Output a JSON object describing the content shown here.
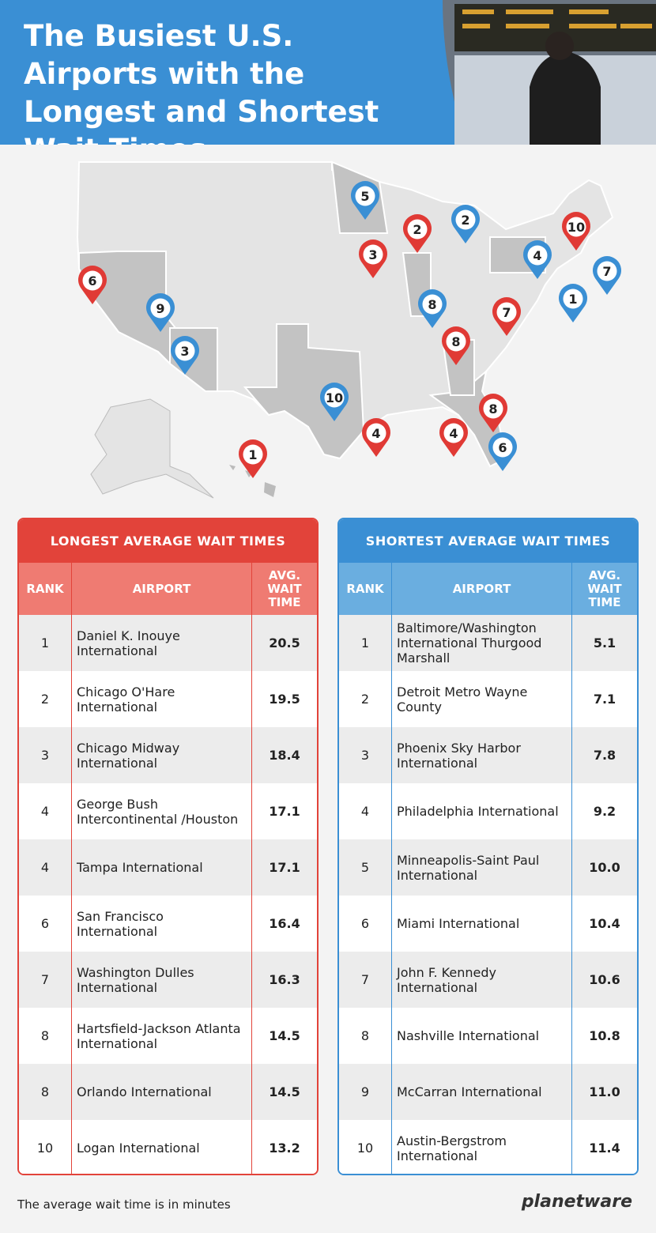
{
  "header": {
    "title": "The Busiest U.S. Airports with the Longest and Shortest Wait Times"
  },
  "map": {
    "pins": [
      {
        "label": 1,
        "color": "#e03a35"
      },
      {
        "label": 2,
        "color": "#e03a35"
      },
      {
        "label": 3,
        "color": "#e03a35"
      },
      {
        "label": 4,
        "color": "#e03a35"
      },
      {
        "label": 4,
        "color": "#e03a35"
      },
      {
        "label": 6,
        "color": "#e03a35"
      },
      {
        "label": 7,
        "color": "#e03a35"
      },
      {
        "label": 8,
        "color": "#e03a35"
      },
      {
        "label": 8,
        "color": "#e03a35"
      },
      {
        "label": 10,
        "color": "#e03a35"
      },
      {
        "label": 1,
        "color": "#3a8fd4"
      },
      {
        "label": 2,
        "color": "#3a8fd4"
      },
      {
        "label": 3,
        "color": "#3a8fd4"
      },
      {
        "label": 4,
        "color": "#3a8fd4"
      },
      {
        "label": 5,
        "color": "#3a8fd4"
      },
      {
        "label": 6,
        "color": "#3a8fd4"
      },
      {
        "label": 7,
        "color": "#3a8fd4"
      },
      {
        "label": 8,
        "color": "#3a8fd4"
      },
      {
        "label": 9,
        "color": "#3a8fd4"
      },
      {
        "label": 10,
        "color": "#3a8fd4"
      }
    ]
  },
  "tables": [
    {
      "title": "LONGEST AVERAGE WAIT TIMES",
      "headers": [
        "RANK",
        "AIRPORT",
        "AVG. WAIT TIME"
      ],
      "rows": [
        [
          "1",
          "Daniel K. Inouye International",
          "20.5"
        ],
        [
          "2",
          "Chicago O'Hare International",
          "19.5"
        ],
        [
          "3",
          "Chicago Midway International",
          "18.4"
        ],
        [
          "4",
          "George Bush Intercontinental /Houston",
          "17.1"
        ],
        [
          "4",
          "Tampa International",
          "17.1"
        ],
        [
          "6",
          "San Francisco International",
          "16.4"
        ],
        [
          "7",
          "Washington Dulles International",
          "16.3"
        ],
        [
          "8",
          "Hartsfield-Jackson Atlanta International",
          "14.5"
        ],
        [
          "8",
          "Orlando International",
          "14.5"
        ],
        [
          "10",
          "Logan International",
          "13.2"
        ]
      ]
    },
    {
      "title": "SHORTEST AVERAGE WAIT TIMES",
      "headers": [
        "RANK",
        "AIRPORT",
        "AVG. WAIT TIME"
      ],
      "rows": [
        [
          "1",
          "Baltimore/Washington International Thurgood Marshall",
          "5.1"
        ],
        [
          "2",
          "Detroit Metro Wayne County",
          "7.1"
        ],
        [
          "3",
          "Phoenix Sky Harbor International",
          "7.8"
        ],
        [
          "4",
          "Philadelphia International",
          "9.2"
        ],
        [
          "5",
          "Minneapolis-Saint Paul International",
          "10.0"
        ],
        [
          "6",
          "Miami International",
          "10.4"
        ],
        [
          "7",
          "John F. Kennedy International",
          "10.6"
        ],
        [
          "8",
          "Nashville International",
          "10.8"
        ],
        [
          "9",
          "McCarran International",
          "11.0"
        ],
        [
          "10",
          "Austin-Bergstrom International",
          "11.4"
        ]
      ]
    }
  ],
  "footnote": "The average wait time is in minutes",
  "logo": "planetware"
}
